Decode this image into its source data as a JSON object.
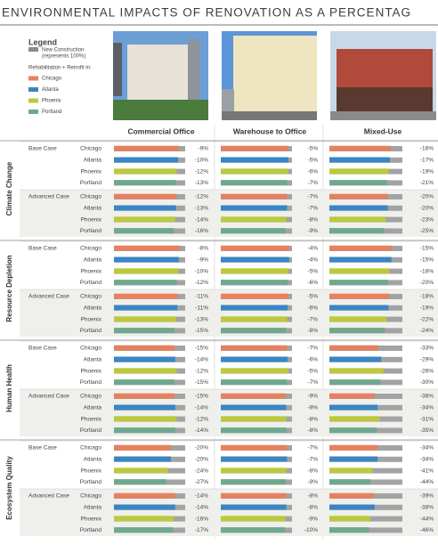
{
  "chart_data": {
    "type": "bar",
    "title": "ENVIRONMENTAL IMPACTS OF RENOVATION AS A PERCENTAG",
    "legend": {
      "title": "Legend",
      "new_construction": "New Construction",
      "new_construction_note": "(represents 100%)",
      "retrofit": "Rehabilitation + Retrofit in:",
      "new_construction_color": "#8c8c8c"
    },
    "baseline_color": "#a3a3a3",
    "xlim": [
      -100,
      0
    ],
    "columns": [
      "Commercial Office",
      "Warehouse to Office",
      "Mixed-Use"
    ],
    "series": [
      {
        "name": "Chicago",
        "color": "#e5815f"
      },
      {
        "name": "Atlanta",
        "color": "#3a86c3"
      },
      {
        "name": "Phoenix",
        "color": "#bdc93c"
      },
      {
        "name": "Portland",
        "color": "#6ea88f"
      }
    ],
    "sections": [
      {
        "name": "Climate Change",
        "cases": [
          {
            "name": "Base Case",
            "values": [
              [
                -9,
                -10,
                -12,
                -13
              ],
              [
                -5,
                -5,
                -6,
                -7
              ],
              [
                -16,
                -17,
                -19,
                -21
              ]
            ],
            "value_labels": [
              [
                "-9%",
                "-10%",
                "-12%",
                "-13%"
              ],
              [
                "-5%",
                "-5%",
                "-6%",
                "-7%"
              ],
              [
                "-16%",
                "-17%",
                "-19%",
                "-21%"
              ]
            ]
          },
          {
            "name": "Advanced Case",
            "values": [
              [
                -12,
                -13,
                -14,
                -16
              ],
              [
                -7,
                -7,
                -8,
                -9
              ],
              [
                -20,
                -20,
                -23,
                -25
              ]
            ],
            "value_labels": [
              [
                "-12%",
                "-13%",
                "-14%",
                "-16%"
              ],
              [
                "-7%",
                "-7%",
                "-8%",
                "-9%"
              ],
              [
                "-20%",
                "-20%",
                "-23%",
                "-25%"
              ]
            ]
          }
        ]
      },
      {
        "name": "Resource Depletion",
        "cases": [
          {
            "name": "Base Case",
            "values": [
              [
                -8,
                -9,
                -10,
                -12
              ],
              [
                -4,
                -4,
                -5,
                -6
              ],
              [
                -15,
                -15,
                -18,
                -20
              ]
            ],
            "value_labels": [
              [
                "-8%",
                "-9%",
                "-10%",
                "-12%"
              ],
              [
                "-4%",
                "-4%",
                "-5%",
                "-6%"
              ],
              [
                "-15%",
                "-15%",
                "-18%",
                "-20%"
              ]
            ]
          },
          {
            "name": "Advanced Case",
            "values": [
              [
                -11,
                -11,
                -13,
                -15
              ],
              [
                -5,
                -6,
                -7,
                -8
              ],
              [
                -18,
                -19,
                -22,
                -24
              ]
            ],
            "value_labels": [
              [
                "-11%",
                "-11%",
                "-13%",
                "-15%"
              ],
              [
                "-5%",
                "-6%",
                "-7%",
                "-8%"
              ],
              [
                "-18%",
                "-19%",
                "-22%",
                "-24%"
              ]
            ]
          }
        ]
      },
      {
        "name": "Human Health",
        "cases": [
          {
            "name": "Base Case",
            "values": [
              [
                -15,
                -14,
                -12,
                -15
              ],
              [
                -7,
                -6,
                -5,
                -7
              ],
              [
                -33,
                -29,
                -26,
                -30
              ]
            ],
            "value_labels": [
              [
                "-15%",
                "-14%",
                "-12%",
                "-15%"
              ],
              [
                "-7%",
                "-6%",
                "-5%",
                "-7%"
              ],
              [
                "-33%",
                "-29%",
                "-26%",
                "-30%"
              ]
            ]
          },
          {
            "name": "Advanced Case",
            "values": [
              [
                -15,
                -14,
                -12,
                -14
              ],
              [
                -9,
                -8,
                -8,
                -8
              ],
              [
                -38,
                -34,
                -31,
                -35
              ]
            ],
            "value_labels": [
              [
                "-15%",
                "-14%",
                "-12%",
                "-14%"
              ],
              [
                "-9%",
                "-8%",
                "-8%",
                "-8%"
              ],
              [
                "-38%",
                "-34%",
                "-31%",
                "-35%"
              ]
            ]
          }
        ]
      },
      {
        "name": "Ecosystem Quality",
        "cases": [
          {
            "name": "Base Case",
            "values": [
              [
                -20,
                -20,
                -24,
                -27
              ],
              [
                -7,
                -7,
                -8,
                -9
              ],
              [
                -34,
                -34,
                -41,
                -44
              ]
            ],
            "value_labels": [
              [
                "-20%",
                "-20%",
                "-24%",
                "-27%"
              ],
              [
                "-7%",
                "-7%",
                "-8%",
                "-9%"
              ],
              [
                "-34%",
                "-34%",
                "-41%",
                "-44%"
              ]
            ]
          },
          {
            "name": "Advanced Case",
            "values": [
              [
                -14,
                -14,
                -16,
                -17
              ],
              [
                -8,
                -8,
                -9,
                -10
              ],
              [
                -39,
                -38,
                -44,
                -46
              ]
            ],
            "value_labels": [
              [
                "-14%",
                "-14%",
                "-16%",
                "-17%"
              ],
              [
                "-8%",
                "-8%",
                "-9%",
                "-10%"
              ],
              [
                "-39%",
                "-38%",
                "-44%",
                "-46%"
              ]
            ]
          }
        ]
      }
    ]
  }
}
